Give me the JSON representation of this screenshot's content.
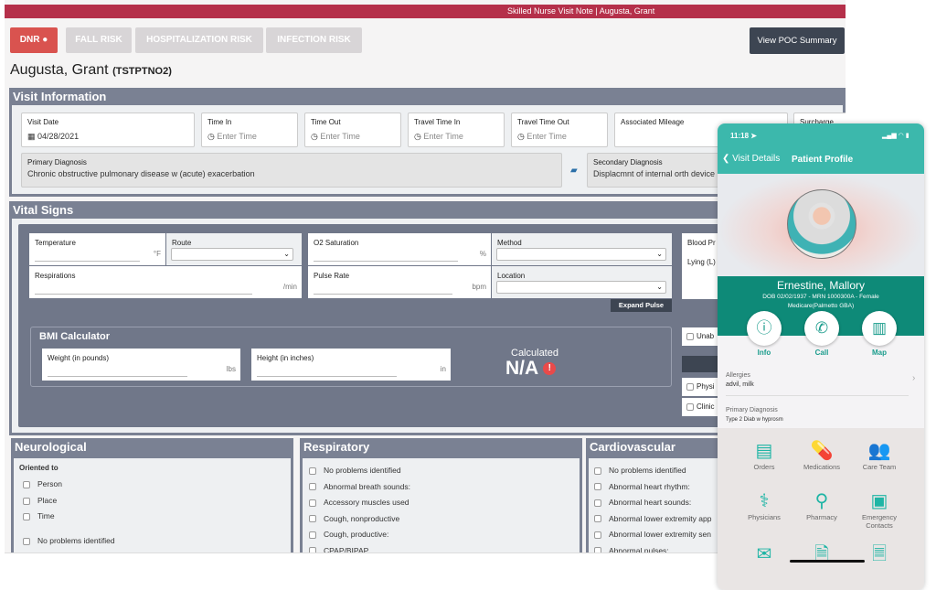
{
  "header": {
    "title": "Skilled Nurse Visit Note | Augusta, Grant"
  },
  "badges": [
    "DNR",
    "FALL RISK",
    "HOSPITALIZATION RISK",
    "INFECTION RISK"
  ],
  "poc_button": "View POC Summary",
  "patient": {
    "name": "Augusta, Grant",
    "id": "(TSTPTNO2)"
  },
  "visit_info": {
    "title": "Visit Information",
    "visit_date": {
      "label": "Visit Date",
      "value": "04/28/2021"
    },
    "time_in": {
      "label": "Time In",
      "placeholder": "Enter Time"
    },
    "time_out": {
      "label": "Time Out",
      "placeholder": "Enter Time"
    },
    "travel_in": {
      "label": "Travel Time In",
      "placeholder": "Enter Time"
    },
    "travel_out": {
      "label": "Travel Time Out",
      "placeholder": "Enter Time"
    },
    "mileage": {
      "label": "Associated Mileage"
    },
    "surcharge": {
      "label": "Surcharge"
    },
    "primary_dx": {
      "label": "Primary Diagnosis",
      "value": "Chronic obstructive pulmonary disease w (acute) exacerbation"
    },
    "secondary_dx": {
      "label": "Secondary Diagnosis",
      "value": "Displacmnt of internal orth device"
    }
  },
  "vitals": {
    "title": "Vital Signs",
    "temperature": "Temperature",
    "temp_unit": "°F",
    "route": "Route",
    "respirations": "Respirations",
    "resp_unit": "/min",
    "o2": "O2 Saturation",
    "o2_unit": "%",
    "method": "Method",
    "pulse": "Pulse Rate",
    "pulse_unit": "bpm",
    "location": "Location",
    "expand_pulse": "Expand Pulse",
    "blood_pressure": "Blood Pr",
    "lying": "Lying (L)",
    "unable": "Unab",
    "physician": "Physi",
    "clinic": "Clinic",
    "bmi": {
      "title": "BMI Calculator",
      "weight": "Weight (in pounds)",
      "weight_unit": "lbs",
      "height": "Height (in inches)",
      "height_unit": "in",
      "calc_label": "Calculated",
      "calc_value": "N/A"
    }
  },
  "neuro": {
    "title": "Neurological",
    "subtitle": "Oriented to",
    "items": [
      "Person",
      "Place",
      "Time",
      "No problems identified"
    ]
  },
  "resp": {
    "title": "Respiratory",
    "items": [
      "No problems identified",
      "Abnormal breath sounds:",
      "Accessory muscles used",
      "Cough, nonproductive",
      "Cough, productive:",
      "CPAP/BIPAP"
    ]
  },
  "cardio": {
    "title": "Cardiovascular",
    "items": [
      "No problems identified",
      "Abnormal heart rhythm:",
      "Abnormal heart sounds:",
      "Abnormal lower extremity app",
      "Abnormal lower extremity sen",
      "Abnormal pulses:"
    ]
  },
  "phone": {
    "time": "11:18",
    "back": "Visit Details",
    "title": "Patient Profile",
    "name": "Ernestine, Mallory",
    "details": "DOB 02/02/1937 - MRN 1000300A - Female",
    "payer": "Medicare(Palmetto GBA)",
    "actions": [
      "Info",
      "Call",
      "Map"
    ],
    "allergies_label": "Allergies",
    "allergies": "advil, milk",
    "dx_label": "Primary Diagnosis",
    "dx": "Type 2 Diab w hyprosm",
    "grid": [
      "Orders",
      "Medications",
      "Care Team",
      "Physicians",
      "Pharmacy",
      "Emergency Contacts"
    ]
  },
  "colors": {
    "header": "#b5304a",
    "dnr": "#d9534f",
    "section": "#7a8193",
    "teal": "#3cb8ac",
    "teal_dark": "#0e8a78"
  }
}
